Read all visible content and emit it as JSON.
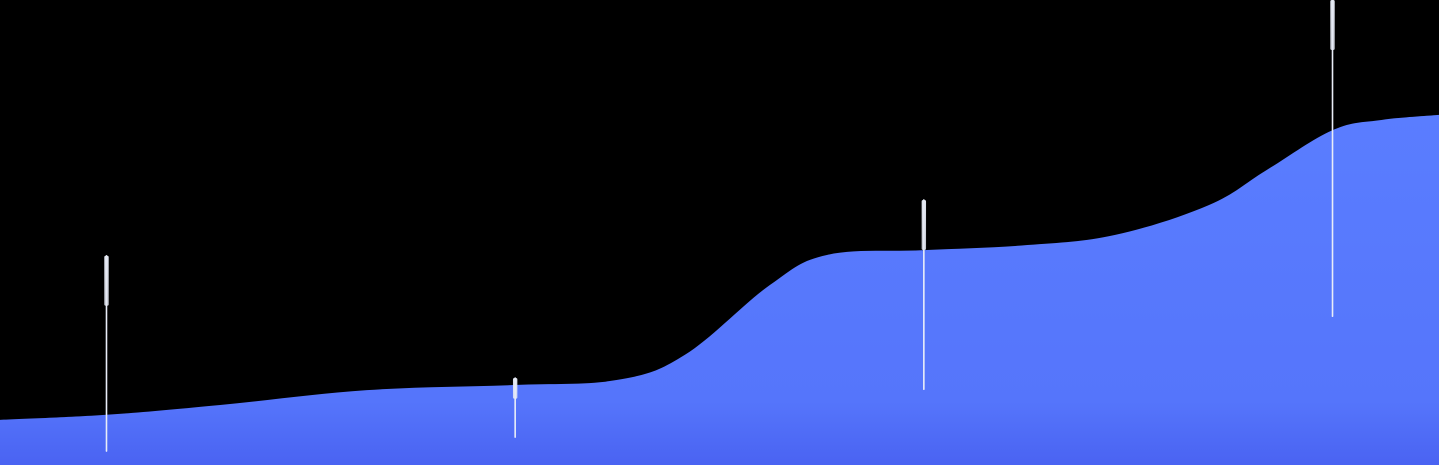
{
  "chart_data": {
    "type": "area",
    "title": "",
    "xlabel": "",
    "ylabel": "",
    "grid": false,
    "legend": "none",
    "xlim": [
      0,
      100
    ],
    "ylim": [
      0,
      100
    ],
    "series": [
      {
        "color": "#5a7dff",
        "x": [
          0,
          7.4,
          15.3,
          25.5,
          35.7,
          42.9,
          47.6,
          53.5,
          57.5,
          64.2,
          71.4,
          77.5,
          84.0,
          88.0,
          92.6,
          96.0,
          100
        ],
        "y": [
          9.7,
          10.8,
          12.9,
          16.1,
          17.2,
          18.3,
          23.7,
          38.7,
          45.2,
          46.2,
          47.3,
          49.5,
          55.9,
          63.4,
          72.0,
          74.2,
          75.3
        ]
      }
    ],
    "markers": [
      {
        "x": 7.4,
        "y_top": 45.0,
        "y_bottom": 3.0
      },
      {
        "x": 35.8,
        "y_top": 18.7,
        "y_bottom": 6.0
      },
      {
        "x": 64.2,
        "y_top": 57.0,
        "y_bottom": 16.3
      },
      {
        "x": 92.6,
        "y_top": 100,
        "y_bottom": 32.0
      }
    ]
  }
}
